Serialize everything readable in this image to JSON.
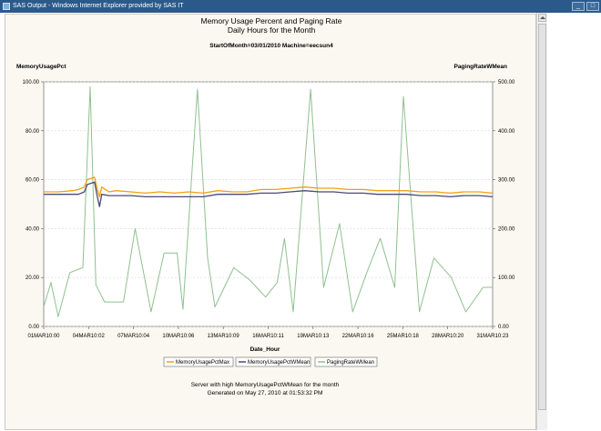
{
  "window": {
    "title": "SAS Output - Windows Internet Explorer provided by SAS IT"
  },
  "chart": {
    "title": "Memory Usage Percent and Paging Rate",
    "subtitle": "Daily Hours for the Month",
    "subtitle2": "StartOfMonth=03/01/2010 Machine=eecsun4",
    "ylabel_left": "MemoryUsagePct",
    "ylabel_right": "PagingRateWMean",
    "xlabel": "Date_Hour",
    "footnote1": "Server with high MemoryUsagePctWMean for the month",
    "footnote2": "Generated on May 27, 2010 at 01:53:32 PM"
  },
  "chart_data": {
    "type": "line",
    "x_range": [
      "01MAR10:00",
      "31MAR10:23"
    ],
    "x_ticks": [
      "01MAR10:00",
      "04MAR10:02",
      "07MAR10:04",
      "10MAR10:06",
      "13MAR10:09",
      "16MAR10:11",
      "19MAR10:13",
      "22MAR10:16",
      "25MAR10:18",
      "28MAR10:20",
      "31MAR10:23"
    ],
    "y_left": {
      "range": [
        0,
        100
      ],
      "ticks": [
        "0.00",
        "20.00",
        "40.00",
        "60.00",
        "80.00",
        "100.00"
      ]
    },
    "y_right": {
      "range": [
        0,
        500
      ],
      "ticks": [
        "0.00",
        "100.00",
        "200.00",
        "300.00",
        "400.00",
        "500.00"
      ]
    },
    "grid": true,
    "legend_position": "bottom",
    "series": [
      {
        "name": "MemoryUsagePctMax",
        "axis": "left",
        "color": "#f0a010",
        "t": [
          0,
          1,
          2,
          2.4,
          2.8,
          3,
          3.5,
          3.7,
          3.85,
          4,
          4.5,
          5,
          6,
          7,
          8,
          9,
          10,
          11,
          12,
          13,
          14,
          15,
          16,
          17,
          18,
          19,
          20,
          21,
          22,
          23,
          24,
          25,
          26,
          27,
          28,
          29,
          30,
          30.95
        ],
        "values": [
          55,
          55,
          55.5,
          56,
          57,
          60,
          61,
          56,
          53,
          57,
          55,
          55.5,
          55,
          54.5,
          55,
          54.5,
          55,
          54.5,
          55.5,
          55,
          55,
          56,
          56,
          56.5,
          57,
          56.5,
          56.5,
          56,
          56,
          55.5,
          55.5,
          55.5,
          55,
          55,
          54.5,
          55,
          55,
          54.5
        ]
      },
      {
        "name": "MemoryUsagePctWMean",
        "axis": "left",
        "color": "#4a4878",
        "t": [
          0,
          1,
          2,
          2.4,
          2.8,
          3,
          3.5,
          3.7,
          3.85,
          4,
          4.5,
          5,
          6,
          7,
          8,
          9,
          10,
          11,
          12,
          13,
          14,
          15,
          16,
          17,
          18,
          19,
          20,
          21,
          22,
          23,
          24,
          25,
          26,
          27,
          28,
          29,
          30,
          30.95
        ],
        "values": [
          54,
          54,
          54,
          54,
          55,
          58,
          59,
          53,
          49,
          54,
          53.5,
          53.5,
          53.5,
          53,
          53,
          53,
          53,
          53,
          54,
          54,
          54,
          54.5,
          54.5,
          55,
          55.5,
          55,
          55,
          54.5,
          54.5,
          54,
          54,
          54,
          53.5,
          53.5,
          53,
          53.5,
          53.5,
          53
        ]
      },
      {
        "name": "PagingRateWMean",
        "axis": "right",
        "color": "#8fc08f",
        "t": [
          0,
          0.5,
          1,
          1.8,
          2.7,
          3.2,
          3.6,
          4.2,
          5.5,
          6.3,
          7.4,
          8.3,
          9.2,
          9.6,
          10.6,
          11.3,
          11.8,
          13.1,
          14.2,
          15.3,
          16.1,
          16.6,
          17.2,
          18.4,
          19.3,
          20.4,
          21.3,
          22.4,
          23.2,
          24.2,
          24.8,
          25.9,
          26.9,
          28.1,
          29.1,
          30.3,
          30.95
        ],
        "values": [
          40,
          90,
          20,
          110,
          120,
          490,
          85,
          50,
          50,
          200,
          30,
          150,
          150,
          35,
          485,
          140,
          40,
          120,
          95,
          60,
          90,
          180,
          30,
          485,
          80,
          210,
          30,
          120,
          180,
          80,
          470,
          30,
          140,
          100,
          30,
          80,
          80
        ]
      }
    ]
  }
}
